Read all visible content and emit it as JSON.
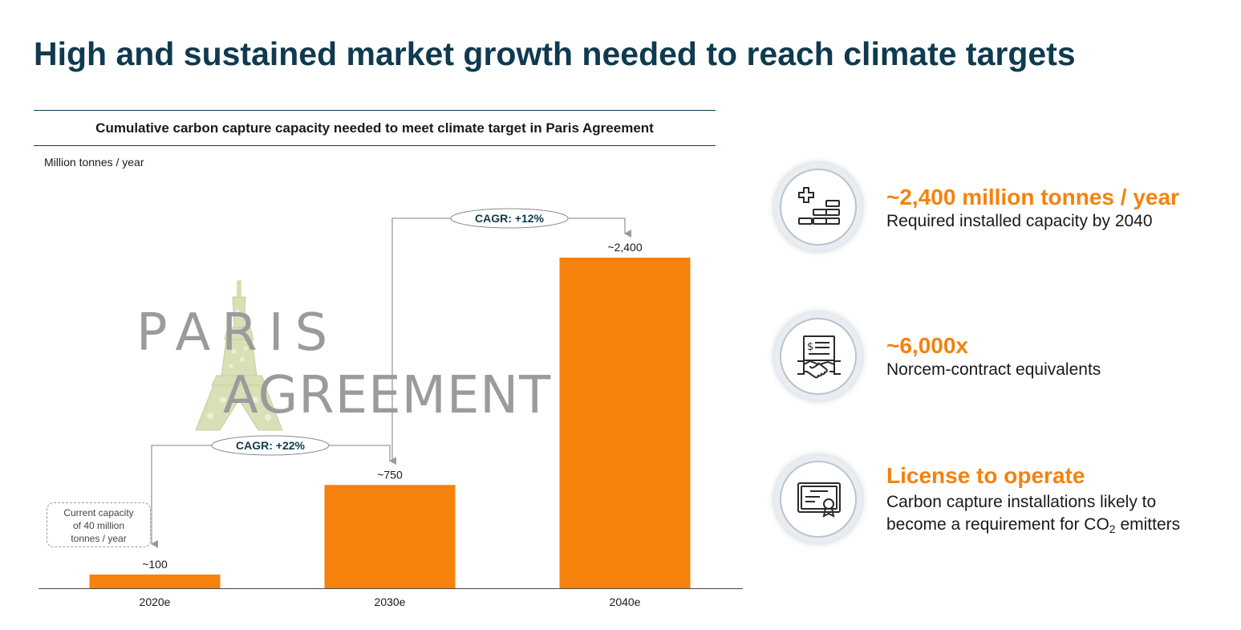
{
  "page": {
    "title": "High and sustained market growth needed to reach climate targets"
  },
  "chart_data": {
    "type": "bar",
    "title": "Cumulative carbon capture capacity needed to meet climate target in Paris Agreement",
    "ylabel": "Million tonnes / year",
    "categories": [
      "2020e",
      "2030e",
      "2040e"
    ],
    "values": [
      100,
      750,
      2400
    ],
    "value_labels": [
      "~100",
      "~750",
      "~2,400"
    ],
    "ylim": [
      0,
      2400
    ],
    "grid": false,
    "bar_color": "#F5820D",
    "annotations": [
      {
        "text": "CAGR: +22%",
        "from": "2020e",
        "to": "2030e"
      },
      {
        "text": "CAGR: +12%",
        "from": "2030e",
        "to": "2040e"
      }
    ],
    "note": "Current capacity\nof 40 million\ntonnes / year"
  },
  "logo": {
    "line1": "PARIS",
    "line2": "AGREEMENT"
  },
  "features": [
    {
      "icon": "capacity-blocks-icon",
      "headline": "~2,400 million tonnes / year",
      "description": "Required installed capacity by 2040"
    },
    {
      "icon": "contract-handshake-icon",
      "headline": "~6,000x",
      "description": "Norcem-contract equivalents"
    },
    {
      "icon": "certificate-icon",
      "headline": "License to operate",
      "description_before": "Carbon capture installations likely to become a requirement for CO",
      "description_sub": "2",
      "description_after": "emitters"
    }
  ],
  "colors": {
    "accent": "#F5820D",
    "title": "#0F3A4F",
    "icon_stroke": "#2A2A2A"
  }
}
